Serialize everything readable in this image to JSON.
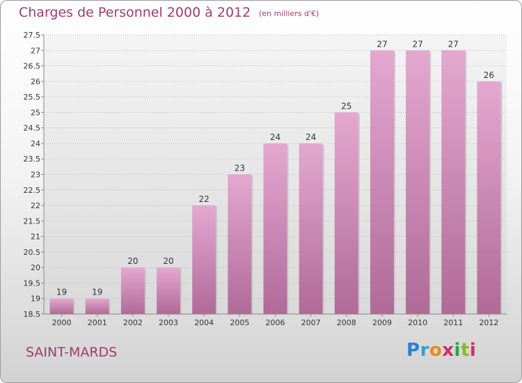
{
  "title": "Charges de Personnel 2000 à 2012",
  "subtitle": "(en milliers d'€)",
  "place": "SAINT-MARDS",
  "logo": {
    "text": "Proxiti"
  },
  "colors": {
    "accent": "#a23a6a",
    "bar_top": "#e4a8d0",
    "bar_bottom": "#b06a98"
  },
  "chart_data": {
    "type": "bar",
    "title": "Charges de Personnel 2000 à 2012",
    "subtitle": "(en milliers d'€)",
    "categories": [
      "2000",
      "2001",
      "2002",
      "2003",
      "2004",
      "2005",
      "2006",
      "2007",
      "2008",
      "2009",
      "2010",
      "2011",
      "2012"
    ],
    "values": [
      19,
      19,
      20,
      20,
      22,
      23,
      24,
      24,
      25,
      27,
      27,
      27,
      26
    ],
    "value_labels": [
      "19",
      "19",
      "20",
      "20",
      "22",
      "23",
      "24",
      "24",
      "25",
      "27",
      "27",
      "27",
      "26"
    ],
    "ylim": [
      18.5,
      27.5
    ],
    "yticks": [
      "18.5",
      "19",
      "19.5",
      "20",
      "20.5",
      "21",
      "21.5",
      "22",
      "22.5",
      "23",
      "23.5",
      "24",
      "24.5",
      "25",
      "25.5",
      "26",
      "26.5",
      "27",
      "27.5"
    ],
    "grid": true
  }
}
